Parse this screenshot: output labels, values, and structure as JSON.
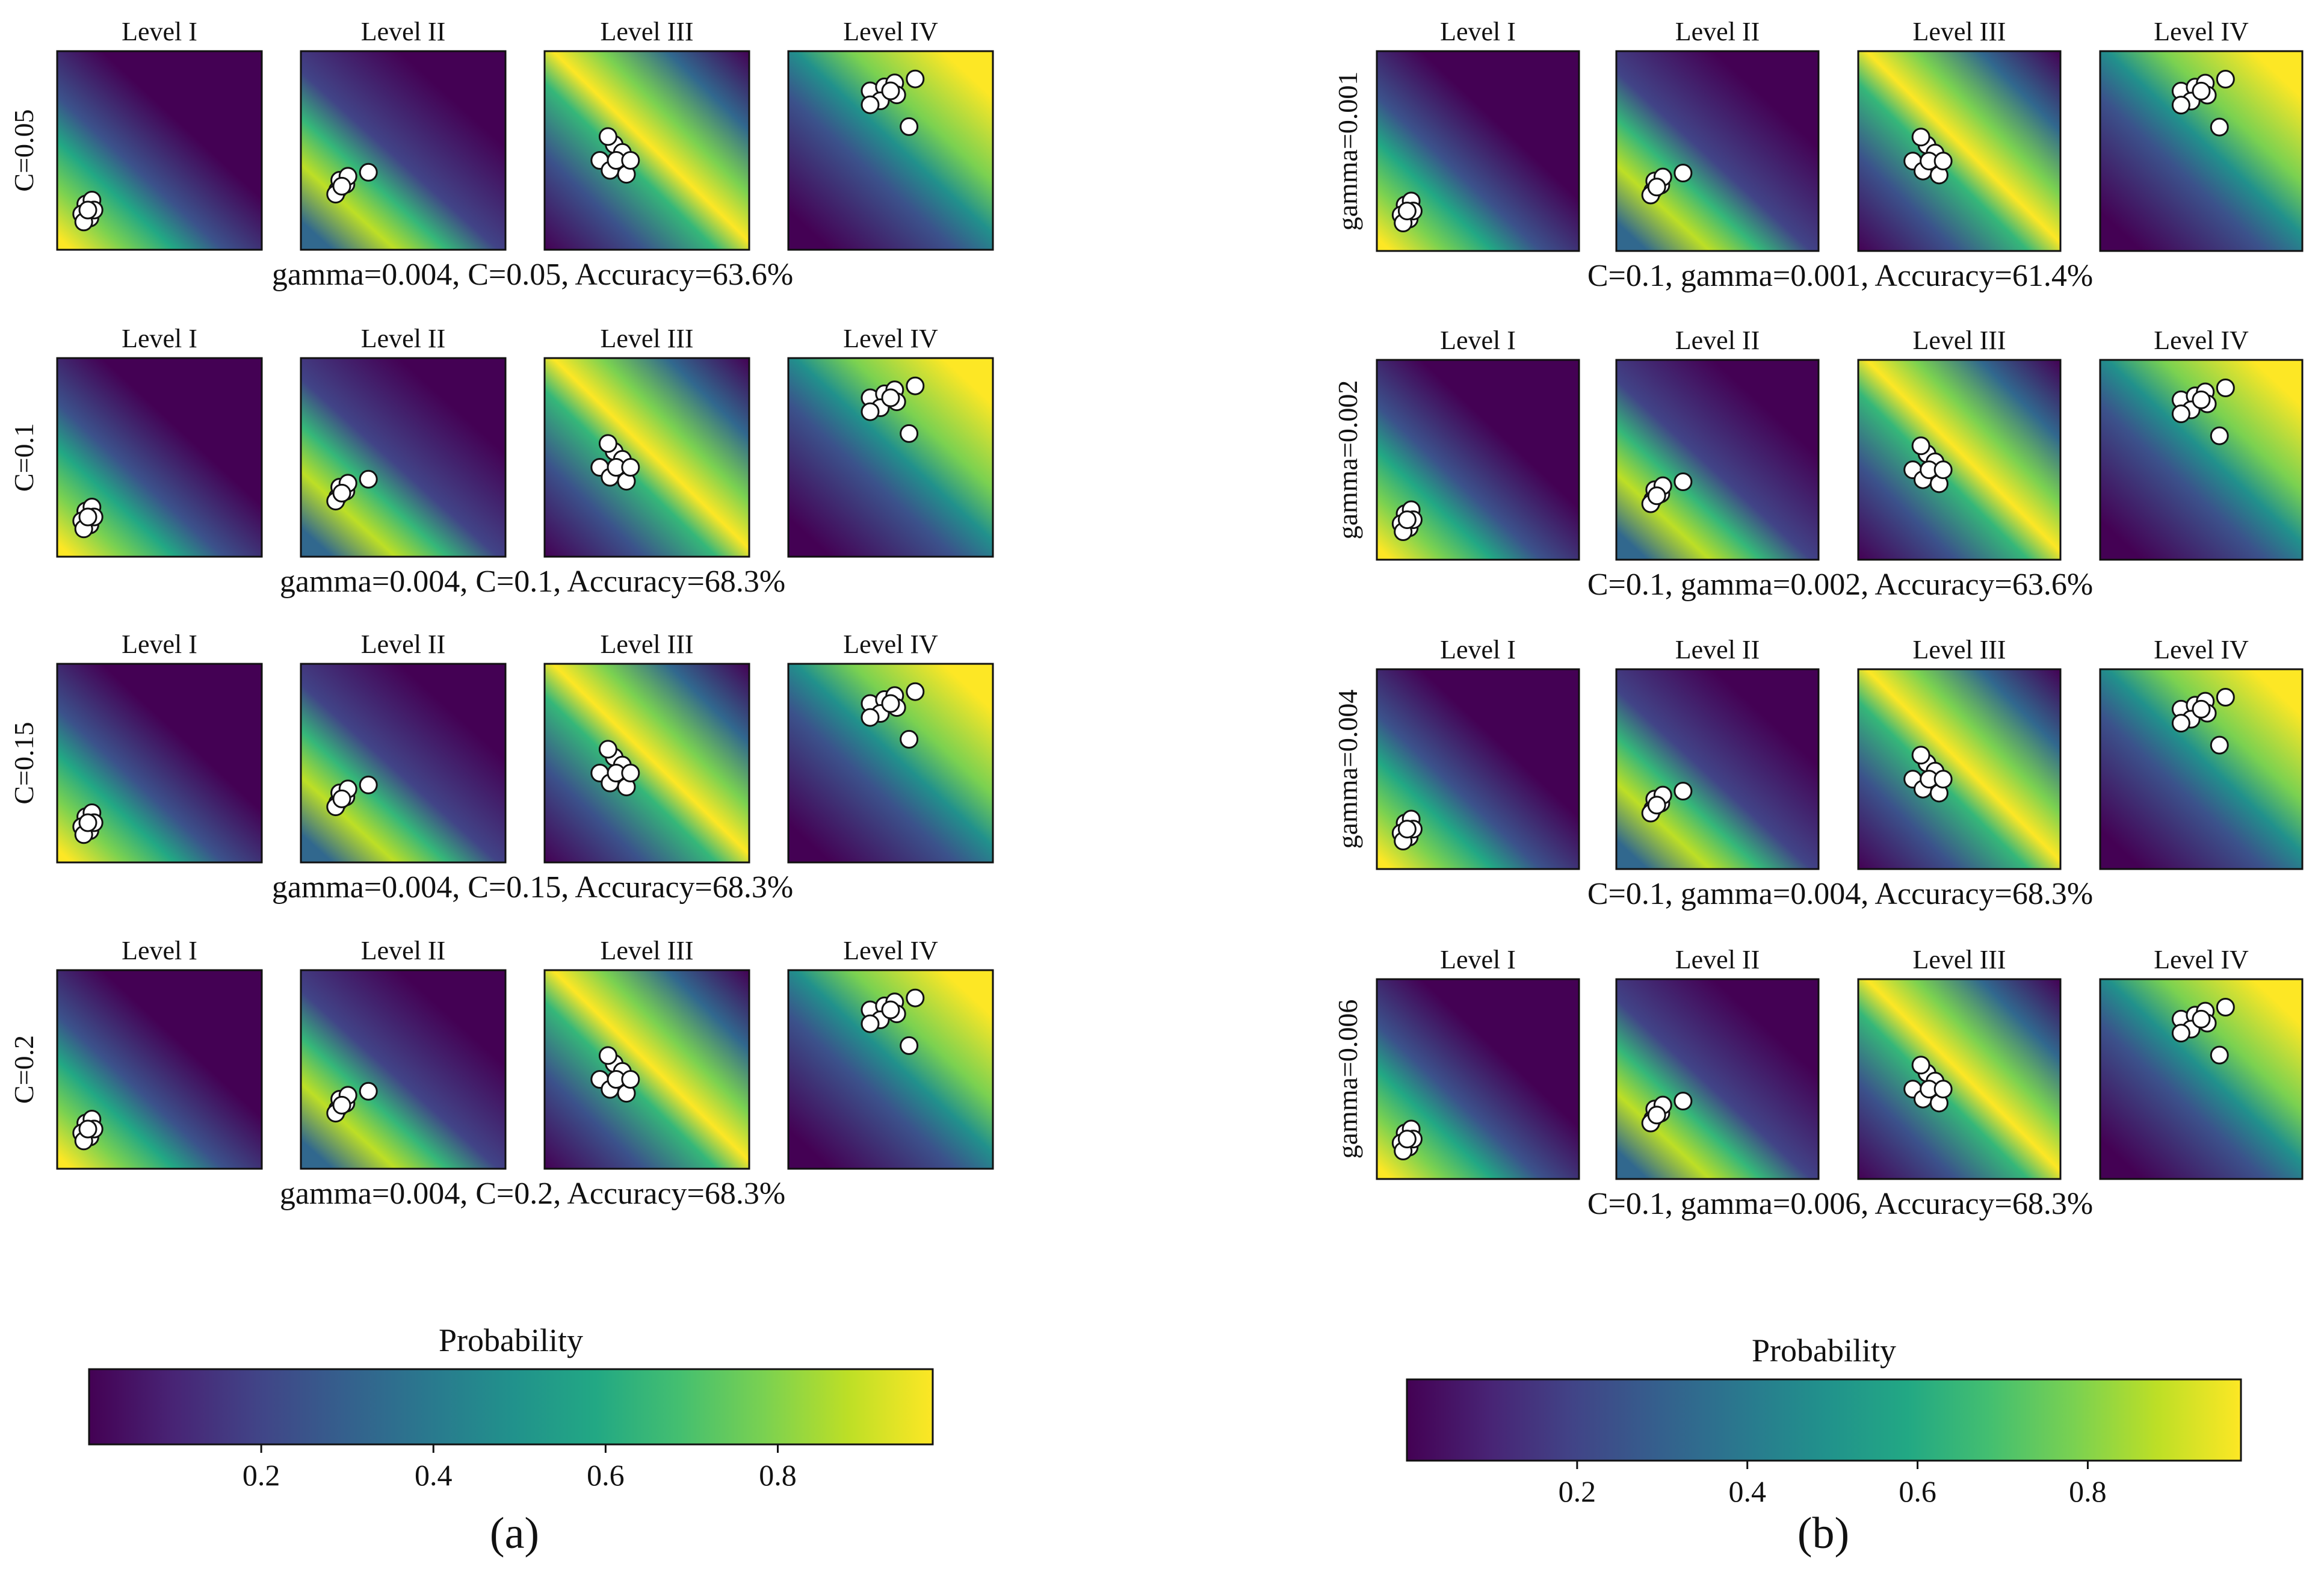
{
  "figure": {
    "panel_labels": [
      "(a)",
      "(b)"
    ],
    "levels": [
      "Level I",
      "Level II",
      "Level III",
      "Level IV"
    ],
    "colorbar": {
      "label": "Probability",
      "ticks": [
        "0.2",
        "0.4",
        "0.6",
        "0.8"
      ],
      "colormap": "viridis",
      "range": [
        0,
        1
      ]
    }
  },
  "chart_data": [
    {
      "panel": "(a)",
      "type": "heatmap",
      "colormap": "viridis",
      "columns": [
        "Level I",
        "Level II",
        "Level III",
        "Level IV"
      ],
      "rows": [
        {
          "row_label": "C=0.05",
          "caption": "gamma=0.004, C=0.05, Accuracy=63.6%",
          "gamma": 0.004,
          "C": 0.05,
          "accuracy": 63.6
        },
        {
          "row_label": "C=0.1",
          "caption": "gamma=0.004, C=0.1, Accuracy=68.3%",
          "gamma": 0.004,
          "C": 0.1,
          "accuracy": 68.3
        },
        {
          "row_label": "C=0.15",
          "caption": "gamma=0.004, C=0.15, Accuracy=68.3%",
          "gamma": 0.004,
          "C": 0.15,
          "accuracy": 68.3
        },
        {
          "row_label": "C=0.2",
          "caption": "gamma=0.004, C=0.2, Accuracy=68.3%",
          "gamma": 0.004,
          "C": 0.2,
          "accuracy": 68.3
        }
      ]
    },
    {
      "panel": "(b)",
      "type": "heatmap",
      "colormap": "viridis",
      "columns": [
        "Level I",
        "Level II",
        "Level III",
        "Level IV"
      ],
      "rows": [
        {
          "row_label": "gamma=0.001",
          "caption": "C=0.1,  gamma=0.001,  Accuracy=61.4%",
          "C": 0.1,
          "gamma": 0.001,
          "accuracy": 61.4
        },
        {
          "row_label": "gamma=0.002",
          "caption": "C=0.1,  gamma=0.002,  Accuracy=63.6%",
          "C": 0.1,
          "gamma": 0.002,
          "accuracy": 63.6
        },
        {
          "row_label": "gamma=0.004",
          "caption": "C=0.1,  gamma=0.004,  Accuracy=68.3%",
          "C": 0.1,
          "gamma": 0.004,
          "accuracy": 68.3
        },
        {
          "row_label": "gamma=0.006",
          "caption": "C=0.1,  gamma=0.006,  Accuracy=68.3%",
          "C": 0.1,
          "gamma": 0.006,
          "accuracy": 68.3
        }
      ]
    }
  ]
}
